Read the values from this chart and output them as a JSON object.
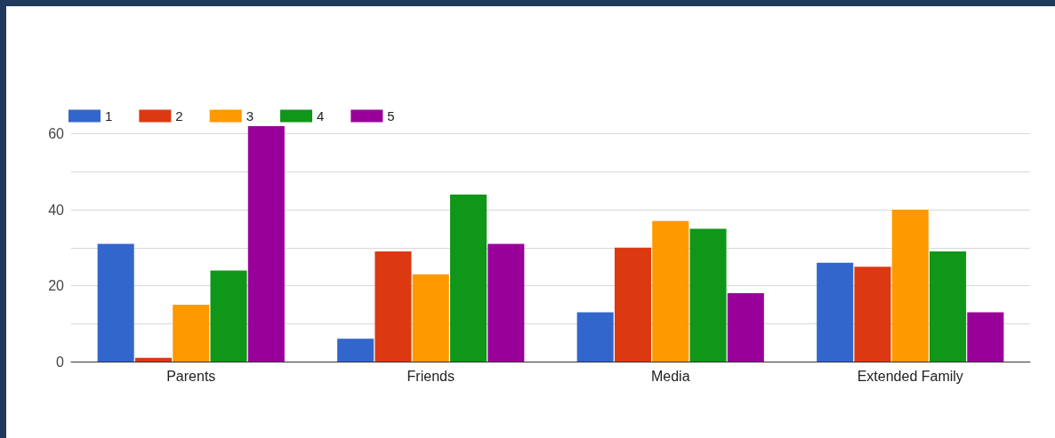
{
  "chart_data": {
    "type": "bar",
    "categories": [
      "Parents",
      "Friends",
      "Media",
      "Extended Family"
    ],
    "series": [
      {
        "name": "1",
        "color": "#3366cc",
        "values": [
          31,
          6,
          13,
          26
        ]
      },
      {
        "name": "2",
        "color": "#dc3912",
        "values": [
          1,
          29,
          30,
          25
        ]
      },
      {
        "name": "3",
        "color": "#ff9900",
        "values": [
          15,
          23,
          37,
          40
        ]
      },
      {
        "name": "4",
        "color": "#109618",
        "values": [
          24,
          44,
          35,
          29
        ]
      },
      {
        "name": "5",
        "color": "#990099",
        "values": [
          62,
          31,
          18,
          13
        ]
      }
    ],
    "ylim": [
      0,
      62
    ],
    "yticks": [
      0,
      {
        "value": 10,
        "label": null
      },
      20,
      {
        "value": 30,
        "label": null
      },
      40,
      {
        "value": 50,
        "label": null
      },
      60
    ],
    "grid": "y",
    "legend": "top left"
  }
}
